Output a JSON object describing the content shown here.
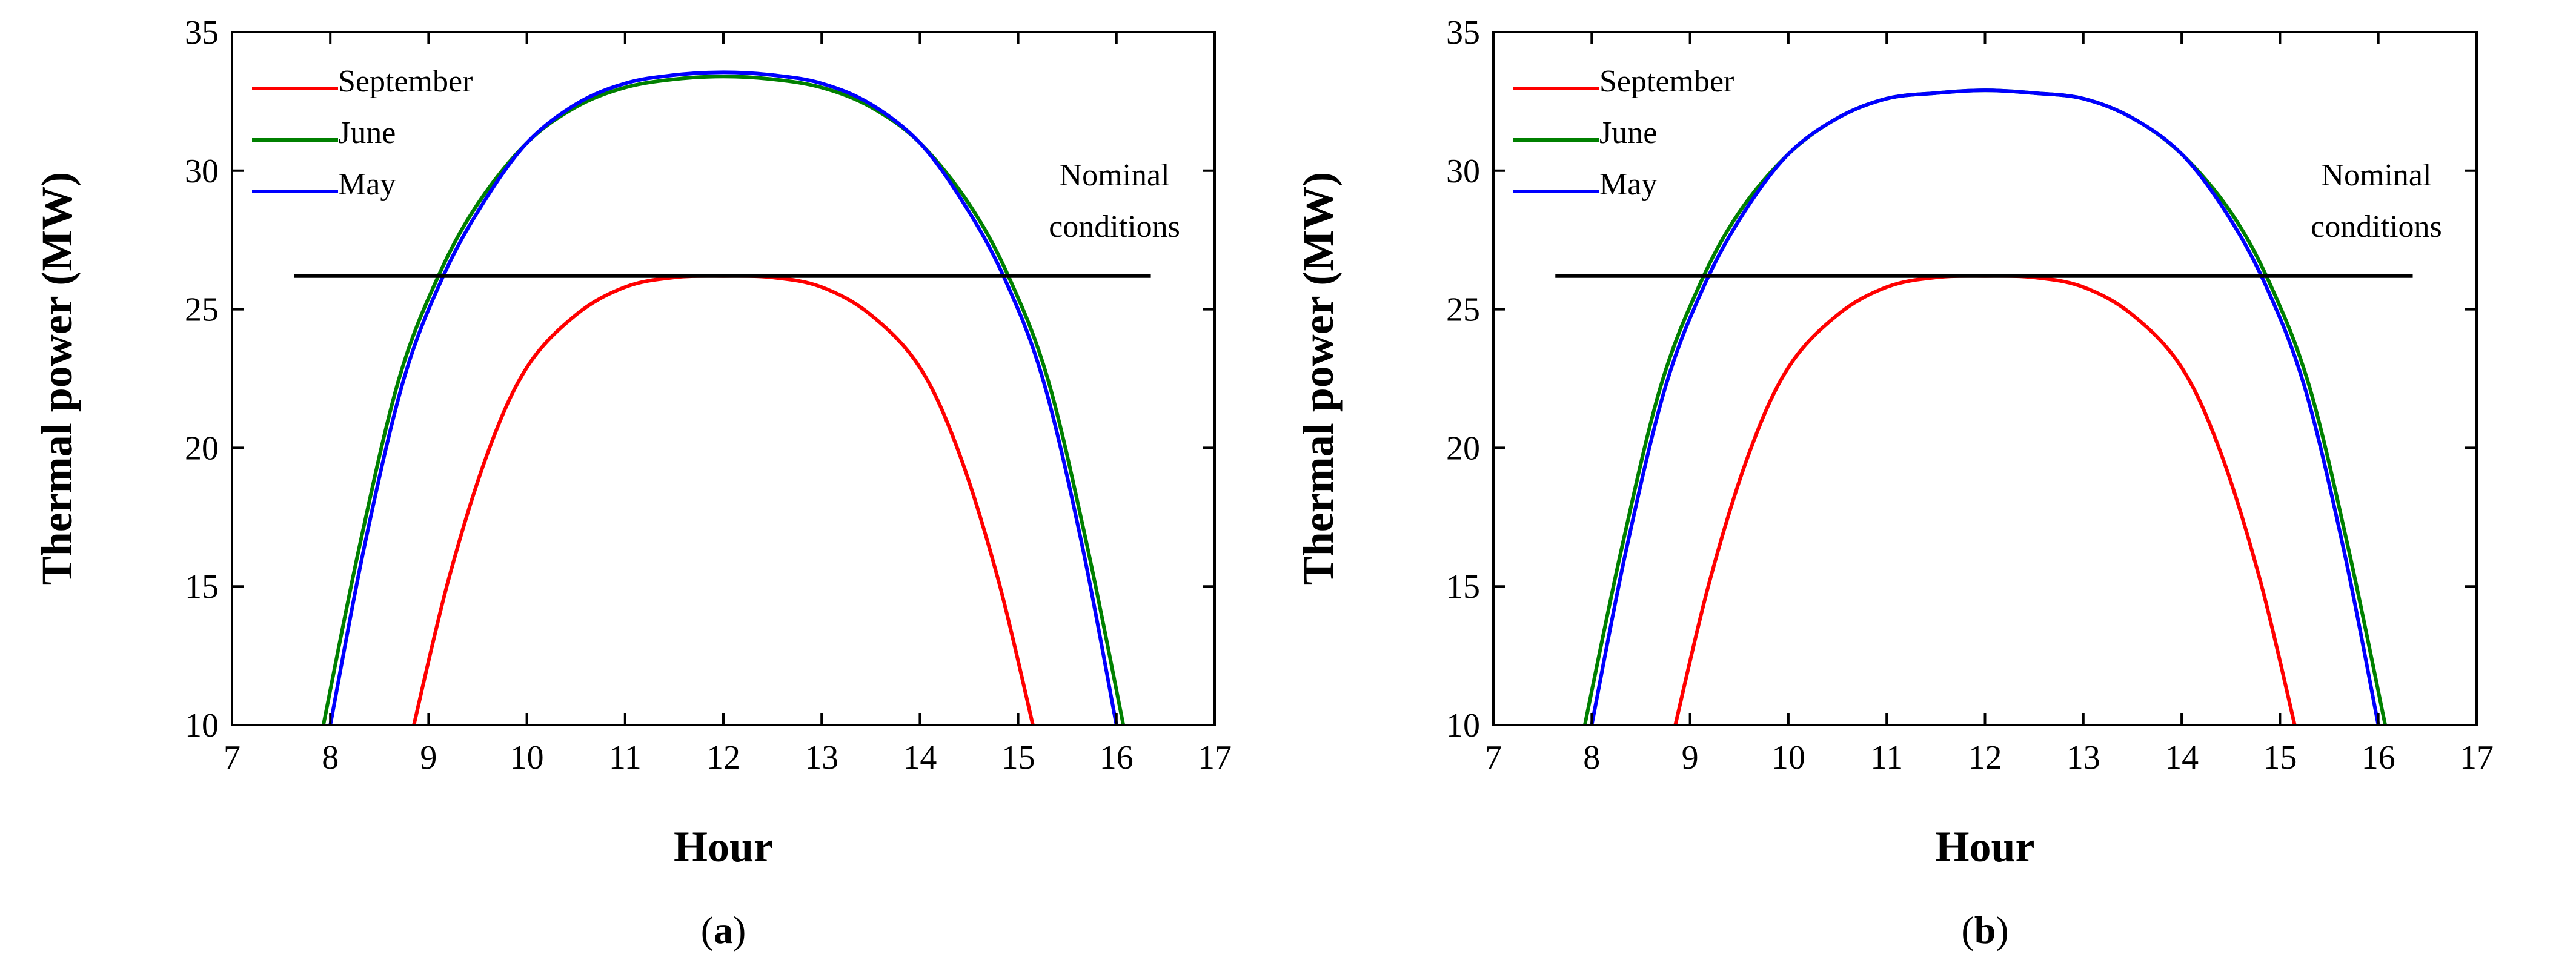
{
  "chart_data": [
    {
      "type": "line",
      "panel_label": "(a)",
      "panel_letter": "a",
      "xlabel": "Hour",
      "ylabel": "Thermal power (MW)",
      "xlim": [
        7,
        17
      ],
      "ylim": [
        10,
        35
      ],
      "xticks": [
        7,
        8,
        9,
        10,
        11,
        12,
        13,
        14,
        15,
        16,
        17
      ],
      "yticks": [
        10,
        15,
        20,
        25,
        30,
        35
      ],
      "legend_position": "top-left",
      "series": [
        {
          "name": "September",
          "color": "#ff0000",
          "x": [
            8.85,
            9.2,
            9.6,
            10.0,
            10.5,
            11.0,
            11.5,
            12.0,
            12.5,
            13.0,
            13.5,
            14.0,
            14.4,
            14.8,
            15.15
          ],
          "y": [
            10,
            15.2,
            19.8,
            22.9,
            24.8,
            25.8,
            26.15,
            26.2,
            26.15,
            25.8,
            24.8,
            22.9,
            19.8,
            15.2,
            10
          ]
        },
        {
          "name": "June",
          "color": "#008000",
          "x": [
            7.93,
            8.3,
            8.7,
            9.1,
            9.5,
            10.0,
            10.5,
            11.0,
            11.5,
            12.0,
            12.5,
            13.0,
            13.5,
            14.0,
            14.5,
            14.9,
            15.3,
            15.7,
            16.07
          ],
          "y": [
            10,
            16.5,
            22.5,
            26.2,
            28.8,
            31.0,
            32.3,
            33.0,
            33.3,
            33.4,
            33.3,
            33.0,
            32.3,
            31.0,
            28.8,
            26.2,
            22.5,
            16.5,
            10
          ]
        },
        {
          "name": "May",
          "color": "#0000ff",
          "x": [
            8.0,
            8.35,
            8.75,
            9.15,
            9.55,
            10.0,
            10.5,
            11.0,
            11.5,
            12.0,
            12.5,
            13.0,
            13.5,
            14.0,
            14.45,
            14.85,
            15.25,
            15.65,
            16.0
          ],
          "y": [
            10,
            16.5,
            22.5,
            26.2,
            28.8,
            31.0,
            32.4,
            33.15,
            33.45,
            33.55,
            33.45,
            33.15,
            32.4,
            31.0,
            28.8,
            26.2,
            22.5,
            16.5,
            10
          ]
        }
      ],
      "reference_line": {
        "label_line1": "Nominal",
        "label_line2": "conditions",
        "y": 26.2,
        "x_start": 7.63,
        "x_end": 16.35,
        "color": "#000000"
      }
    },
    {
      "type": "line",
      "panel_label": "(b)",
      "panel_letter": "b",
      "xlabel": "Hour",
      "ylabel": "Thermal power (MW)",
      "xlim": [
        7,
        17
      ],
      "ylim": [
        10,
        35
      ],
      "xticks": [
        7,
        8,
        9,
        10,
        11,
        12,
        13,
        14,
        15,
        16,
        17
      ],
      "yticks": [
        10,
        15,
        20,
        25,
        30,
        35
      ],
      "legend_position": "top-left",
      "series": [
        {
          "name": "September",
          "color": "#ff0000",
          "x": [
            8.85,
            9.2,
            9.6,
            10.0,
            10.5,
            11.0,
            11.5,
            12.0,
            12.5,
            13.0,
            13.5,
            14.0,
            14.4,
            14.8,
            15.15
          ],
          "y": [
            10,
            15.2,
            19.8,
            22.9,
            24.8,
            25.8,
            26.15,
            26.2,
            26.15,
            25.8,
            24.8,
            22.9,
            19.8,
            15.2,
            10
          ]
        },
        {
          "name": "June",
          "color": "#008000",
          "x": [
            7.93,
            8.3,
            8.7,
            9.1,
            9.5,
            10.0,
            10.5,
            11.0,
            11.5,
            12.0,
            12.5,
            13.0,
            13.5,
            14.0,
            14.5,
            14.9,
            15.3,
            15.7,
            16.07
          ],
          "y": [
            10,
            16.3,
            22.2,
            25.9,
            28.5,
            30.6,
            31.9,
            32.6,
            32.8,
            32.9,
            32.8,
            32.6,
            31.9,
            30.6,
            28.5,
            25.9,
            22.2,
            16.3,
            10
          ]
        },
        {
          "name": "May",
          "color": "#0000ff",
          "x": [
            8.0,
            8.35,
            8.75,
            9.15,
            9.55,
            10.0,
            10.5,
            11.0,
            11.5,
            12.0,
            12.5,
            13.0,
            13.5,
            14.0,
            14.45,
            14.85,
            15.25,
            15.65,
            16.0
          ],
          "y": [
            10,
            16.3,
            22.2,
            25.9,
            28.5,
            30.6,
            31.9,
            32.6,
            32.8,
            32.9,
            32.8,
            32.6,
            31.9,
            30.6,
            28.5,
            25.9,
            22.2,
            16.3,
            10
          ]
        }
      ],
      "reference_line": {
        "label_line1": "Nominal",
        "label_line2": "conditions",
        "y": 26.2,
        "x_start": 7.63,
        "x_end": 16.35,
        "color": "#000000"
      }
    }
  ]
}
